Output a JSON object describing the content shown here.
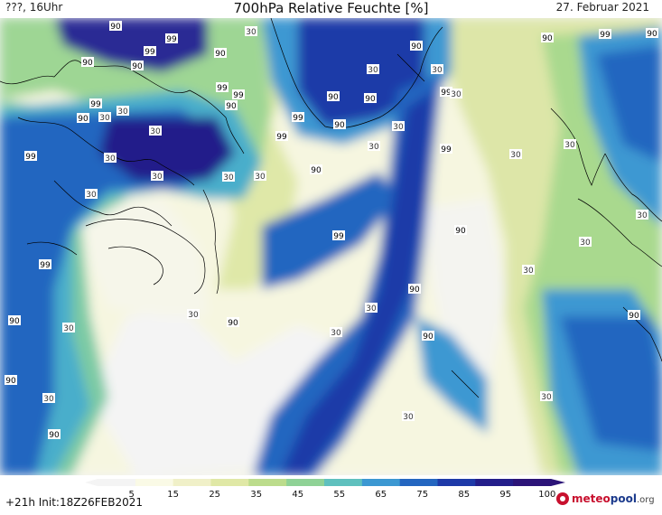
{
  "header": {
    "left": "???, 16Uhr",
    "title": "700hPa Relative Feuchte [%]",
    "right": "27. Februar 2021"
  },
  "footer": {
    "run_info": "+21h Init:18Z26FEB2021"
  },
  "logo": {
    "brand_main": "meteo",
    "brand_accent": "pool",
    "brand_tld": ".org"
  },
  "legend": {
    "ticks": [
      "5",
      "15",
      "25",
      "35",
      "45",
      "55",
      "65",
      "75",
      "85",
      "95",
      "100"
    ],
    "colors": [
      "#f4f4f4",
      "#fafae6",
      "#f0f0c8",
      "#e0e8a6",
      "#bcdc8c",
      "#8fd296",
      "#5fc0be",
      "#3c98d2",
      "#2466c0",
      "#1e3aa8",
      "#241e8a",
      "#2c1478"
    ]
  },
  "contour_labels": [
    {
      "text": "90",
      "id": "lbl-1"
    },
    {
      "text": "99",
      "id": "lbl-2"
    },
    {
      "text": "30",
      "id": "lbl-3"
    },
    {
      "text": "99",
      "id": "lbl-4"
    },
    {
      "text": "90",
      "id": "lbl-5"
    },
    {
      "text": "90",
      "id": "lbl-6"
    },
    {
      "text": "90",
      "id": "lbl-7"
    },
    {
      "text": "99",
      "id": "lbl-8"
    },
    {
      "text": "90",
      "id": "lbl-9"
    },
    {
      "text": "30",
      "id": "lbl-10"
    },
    {
      "text": "30",
      "id": "lbl-11"
    },
    {
      "text": "99",
      "id": "lbl-12"
    },
    {
      "text": "90",
      "id": "lbl-13"
    },
    {
      "text": "99",
      "id": "lbl-14"
    },
    {
      "text": "90",
      "id": "lbl-15"
    },
    {
      "text": "99",
      "id": "lbl-16"
    },
    {
      "text": "99",
      "id": "lbl-17"
    },
    {
      "text": "90",
      "id": "lbl-18"
    },
    {
      "text": "30",
      "id": "lbl-19"
    },
    {
      "text": "30",
      "id": "lbl-20"
    },
    {
      "text": "99",
      "id": "lbl-21"
    },
    {
      "text": "90",
      "id": "lbl-22"
    },
    {
      "text": "30",
      "id": "lbl-23"
    },
    {
      "text": "30",
      "id": "lbl-24"
    },
    {
      "text": "90",
      "id": "lbl-25"
    },
    {
      "text": "30",
      "id": "lbl-26"
    },
    {
      "text": "99",
      "id": "lbl-27"
    },
    {
      "text": "90",
      "id": "lbl-28"
    },
    {
      "text": "99",
      "id": "lbl-29"
    },
    {
      "text": "90",
      "id": "lbl-30"
    },
    {
      "text": "99",
      "id": "lbl-31"
    },
    {
      "text": "30",
      "id": "lbl-32"
    },
    {
      "text": "30",
      "id": "lbl-33"
    },
    {
      "text": "30",
      "id": "lbl-34"
    },
    {
      "text": "30",
      "id": "lbl-35"
    },
    {
      "text": "30",
      "id": "lbl-36"
    },
    {
      "text": "90",
      "id": "lbl-37"
    },
    {
      "text": "30",
      "id": "lbl-38"
    },
    {
      "text": "30",
      "id": "lbl-39"
    },
    {
      "text": "30",
      "id": "lbl-40"
    },
    {
      "text": "99",
      "id": "lbl-41"
    },
    {
      "text": "90",
      "id": "lbl-42"
    },
    {
      "text": "30",
      "id": "lbl-43"
    },
    {
      "text": "90",
      "id": "lbl-44"
    },
    {
      "text": "30",
      "id": "lbl-45"
    },
    {
      "text": "90",
      "id": "lbl-46"
    },
    {
      "text": "30",
      "id": "lbl-47"
    },
    {
      "text": "90",
      "id": "lbl-48"
    },
    {
      "text": "99",
      "id": "lbl-49"
    },
    {
      "text": "30",
      "id": "lbl-50"
    },
    {
      "text": "90",
      "id": "lbl-51"
    },
    {
      "text": "30",
      "id": "lbl-52"
    },
    {
      "text": "90",
      "id": "lbl-53"
    },
    {
      "text": "90",
      "id": "lbl-54"
    },
    {
      "text": "30",
      "id": "lbl-55"
    },
    {
      "text": "30",
      "id": "lbl-56"
    },
    {
      "text": "30",
      "id": "lbl-57"
    },
    {
      "text": "90",
      "id": "lbl-58"
    },
    {
      "text": "30",
      "id": "lbl-59"
    },
    {
      "text": "30",
      "id": "lbl-60"
    }
  ]
}
